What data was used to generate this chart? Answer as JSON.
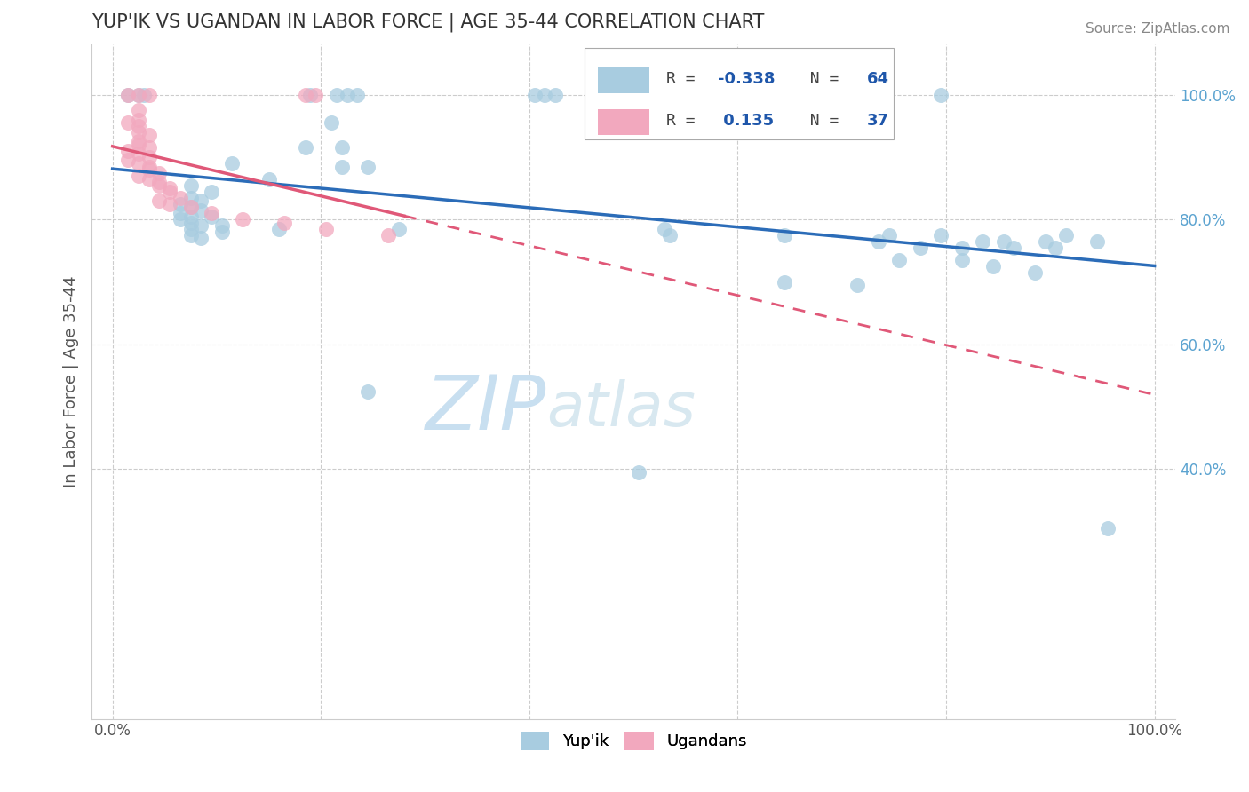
{
  "title": "YUP'IK VS UGANDAN IN LABOR FORCE | AGE 35-44 CORRELATION CHART",
  "source_text": "Source: ZipAtlas.com",
  "ylabel": "In Labor Force | Age 35-44",
  "xlim": [
    -0.02,
    1.02
  ],
  "ylim": [
    0.0,
    1.08
  ],
  "x_ticks": [
    0.0,
    0.2,
    0.4,
    0.6,
    0.8,
    1.0
  ],
  "x_tick_labels": [
    "0.0%",
    "",
    "",
    "",
    "",
    "100.0%"
  ],
  "y_ticks": [
    0.4,
    0.6,
    0.8,
    1.0
  ],
  "y_tick_labels": [
    "40.0%",
    "60.0%",
    "80.0%",
    "100.0%"
  ],
  "watermark_zip": "ZIP",
  "watermark_atlas": "atlas",
  "blue_color": "#a8cce0",
  "pink_color": "#f2a8be",
  "blue_line_color": "#2b6cb8",
  "pink_line_color": "#e05878",
  "blue_R": -0.338,
  "pink_R": 0.135,
  "blue_N": 64,
  "pink_N": 37,
  "blue_scatter": [
    [
      0.015,
      1.0
    ],
    [
      0.025,
      1.0
    ],
    [
      0.03,
      1.0
    ],
    [
      0.19,
      1.0
    ],
    [
      0.215,
      1.0
    ],
    [
      0.225,
      1.0
    ],
    [
      0.235,
      1.0
    ],
    [
      0.405,
      1.0
    ],
    [
      0.415,
      1.0
    ],
    [
      0.425,
      1.0
    ],
    [
      0.575,
      1.0
    ],
    [
      0.645,
      0.975
    ],
    [
      0.795,
      1.0
    ],
    [
      0.21,
      0.955
    ],
    [
      0.185,
      0.915
    ],
    [
      0.22,
      0.915
    ],
    [
      0.115,
      0.89
    ],
    [
      0.22,
      0.885
    ],
    [
      0.245,
      0.885
    ],
    [
      0.15,
      0.865
    ],
    [
      0.075,
      0.855
    ],
    [
      0.095,
      0.845
    ],
    [
      0.075,
      0.835
    ],
    [
      0.085,
      0.83
    ],
    [
      0.065,
      0.825
    ],
    [
      0.075,
      0.82
    ],
    [
      0.085,
      0.815
    ],
    [
      0.065,
      0.81
    ],
    [
      0.075,
      0.805
    ],
    [
      0.095,
      0.805
    ],
    [
      0.065,
      0.8
    ],
    [
      0.075,
      0.795
    ],
    [
      0.085,
      0.79
    ],
    [
      0.105,
      0.79
    ],
    [
      0.075,
      0.785
    ],
    [
      0.105,
      0.78
    ],
    [
      0.16,
      0.785
    ],
    [
      0.075,
      0.775
    ],
    [
      0.085,
      0.77
    ],
    [
      0.275,
      0.785
    ],
    [
      0.53,
      0.785
    ],
    [
      0.535,
      0.775
    ],
    [
      0.645,
      0.775
    ],
    [
      0.745,
      0.775
    ],
    [
      0.795,
      0.775
    ],
    [
      0.915,
      0.775
    ],
    [
      0.735,
      0.765
    ],
    [
      0.835,
      0.765
    ],
    [
      0.855,
      0.765
    ],
    [
      0.895,
      0.765
    ],
    [
      0.945,
      0.765
    ],
    [
      0.775,
      0.755
    ],
    [
      0.815,
      0.755
    ],
    [
      0.865,
      0.755
    ],
    [
      0.905,
      0.755
    ],
    [
      0.755,
      0.735
    ],
    [
      0.815,
      0.735
    ],
    [
      0.845,
      0.725
    ],
    [
      0.885,
      0.715
    ],
    [
      0.645,
      0.7
    ],
    [
      0.715,
      0.695
    ],
    [
      0.245,
      0.525
    ],
    [
      0.505,
      0.395
    ],
    [
      0.955,
      0.305
    ]
  ],
  "pink_scatter": [
    [
      0.015,
      1.0
    ],
    [
      0.025,
      1.0
    ],
    [
      0.035,
      1.0
    ],
    [
      0.185,
      1.0
    ],
    [
      0.195,
      1.0
    ],
    [
      0.025,
      0.975
    ],
    [
      0.025,
      0.96
    ],
    [
      0.015,
      0.955
    ],
    [
      0.025,
      0.95
    ],
    [
      0.025,
      0.94
    ],
    [
      0.035,
      0.935
    ],
    [
      0.025,
      0.925
    ],
    [
      0.025,
      0.92
    ],
    [
      0.035,
      0.915
    ],
    [
      0.015,
      0.91
    ],
    [
      0.025,
      0.905
    ],
    [
      0.035,
      0.9
    ],
    [
      0.015,
      0.895
    ],
    [
      0.025,
      0.89
    ],
    [
      0.035,
      0.885
    ],
    [
      0.035,
      0.88
    ],
    [
      0.045,
      0.875
    ],
    [
      0.025,
      0.87
    ],
    [
      0.035,
      0.865
    ],
    [
      0.045,
      0.86
    ],
    [
      0.045,
      0.855
    ],
    [
      0.055,
      0.85
    ],
    [
      0.055,
      0.845
    ],
    [
      0.065,
      0.835
    ],
    [
      0.045,
      0.83
    ],
    [
      0.055,
      0.825
    ],
    [
      0.075,
      0.82
    ],
    [
      0.095,
      0.81
    ],
    [
      0.125,
      0.8
    ],
    [
      0.165,
      0.795
    ],
    [
      0.205,
      0.785
    ],
    [
      0.265,
      0.775
    ]
  ]
}
